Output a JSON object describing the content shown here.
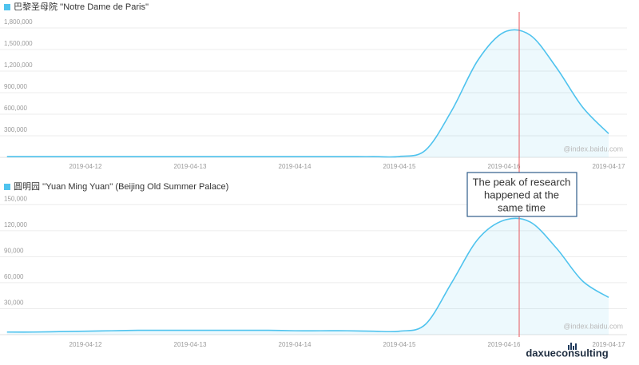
{
  "chart_data": [
    {
      "type": "line",
      "categories": [
        null,
        null,
        null,
        "2019-04-12",
        null,
        null,
        null,
        "2019-04-13",
        null,
        null,
        null,
        "2019-04-14",
        null,
        null,
        null,
        "2019-04-15",
        null,
        null,
        null,
        "2019-04-16",
        null,
        null,
        null,
        "2019-04-17"
      ],
      "series": [
        {
          "name": "巴黎圣母院 ''Notre Dame de Paris''",
          "color": "#4fc3ee",
          "values": [
            10000,
            10000,
            10000,
            10000,
            10000,
            10000,
            10000,
            10000,
            10000,
            10000,
            10000,
            10000,
            10000,
            10000,
            10000,
            12000,
            100000,
            650000,
            1350000,
            1740000,
            1700000,
            1250000,
            700000,
            330000
          ]
        }
      ],
      "ylim": [
        0,
        2000000
      ],
      "yticks": [
        {
          "value": 300000,
          "label": "300,000"
        },
        {
          "value": 600000,
          "label": "600,000"
        },
        {
          "value": 900000,
          "label": "900,000"
        },
        {
          "value": 1200000,
          "label": "1,200,000"
        },
        {
          "value": 1500000,
          "label": "1,500,000"
        },
        {
          "value": 1800000,
          "label": "1,800,000"
        }
      ],
      "grid": true,
      "watermark": "@index.baidu.com"
    },
    {
      "type": "line",
      "categories": [
        null,
        null,
        null,
        "2019-04-12",
        null,
        null,
        null,
        "2019-04-13",
        null,
        null,
        null,
        "2019-04-14",
        null,
        null,
        null,
        "2019-04-15",
        null,
        null,
        null,
        "2019-04-16",
        null,
        null,
        null,
        "2019-04-17"
      ],
      "series": [
        {
          "name": "圆明园 ''Yuan Ming Yuan'' (Beijing Old Summer Palace)",
          "color": "#4fc3ee",
          "values": [
            3000,
            3000,
            3500,
            4000,
            4500,
            5000,
            5000,
            5000,
            5000,
            5000,
            5000,
            4500,
            4500,
            4500,
            4000,
            4000,
            12000,
            60000,
            110000,
            132000,
            130000,
            100000,
            62000,
            43000
          ]
        }
      ],
      "ylim": [
        0,
        165000
      ],
      "yticks": [
        {
          "value": 30000,
          "label": "30,000"
        },
        {
          "value": 60000,
          "label": "60,000"
        },
        {
          "value": 90000,
          "label": "90,000"
        },
        {
          "value": 120000,
          "label": "120,000"
        },
        {
          "value": 150000,
          "label": "150,000"
        }
      ],
      "grid": true,
      "watermark": "@index.baidu.com"
    }
  ],
  "annotation": [
    "The peak of research",
    "happened at the",
    "same time"
  ],
  "logo": "daxueconsulting"
}
